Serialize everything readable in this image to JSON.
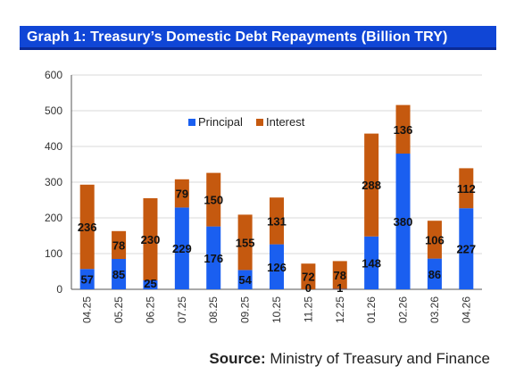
{
  "title": "Graph 1: Treasury’s Domestic Debt Repayments (Billion TRY)",
  "source": {
    "label": "Source:",
    "text": "Ministry of Treasury and Finance"
  },
  "colors": {
    "title_bg": "#1046d6",
    "principal": "#1a5ff0",
    "interest": "#c5590f",
    "grid": "#d9d9d9",
    "axis": "#555555"
  },
  "chart_data": {
    "type": "bar",
    "stacked": true,
    "categories": [
      "04.25",
      "05.25",
      "06.25",
      "07.25",
      "08.25",
      "09.25",
      "10.25",
      "11.25",
      "12.25",
      "01.26",
      "02.26",
      "03.26",
      "04.26"
    ],
    "series": [
      {
        "name": "Principal",
        "color": "#1a5ff0",
        "values": [
          57,
          85,
          25,
          229,
          176,
          54,
          126,
          0,
          1,
          148,
          380,
          86,
          227
        ]
      },
      {
        "name": "Interest",
        "color": "#c5590f",
        "values": [
          236,
          78,
          230,
          79,
          150,
          155,
          131,
          72,
          78,
          288,
          136,
          106,
          112
        ]
      }
    ],
    "ylim": [
      0,
      600
    ],
    "yticks": [
      0,
      100,
      200,
      300,
      400,
      500,
      600
    ],
    "grid": true,
    "legend": "top-center"
  }
}
